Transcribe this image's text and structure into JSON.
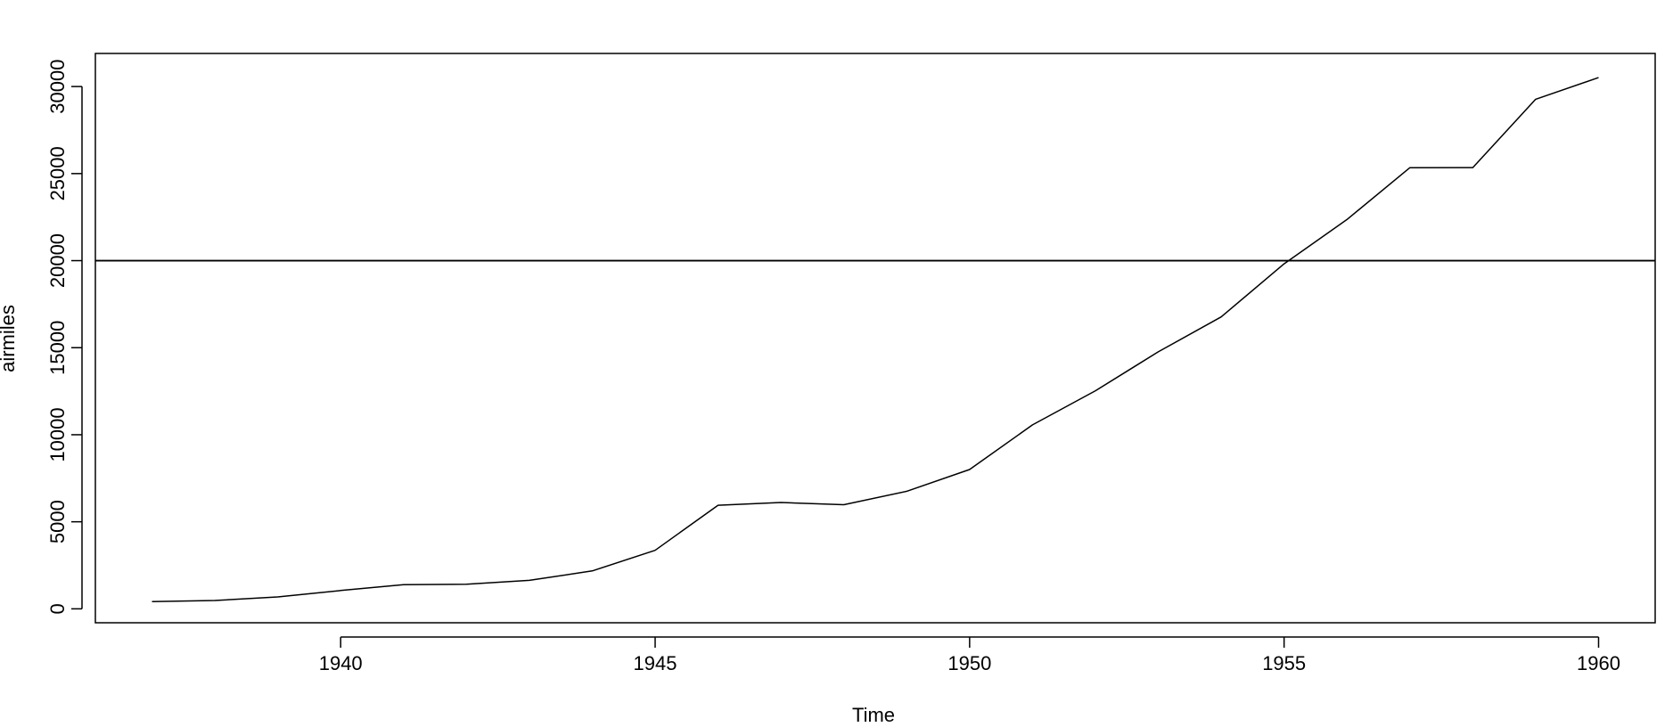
{
  "chart_data": {
    "type": "line",
    "title": "",
    "xlabel": "Time",
    "ylabel": "airmiles",
    "xlim": [
      1936.1,
      1960.9
    ],
    "ylim": [
      -800,
      31900
    ],
    "x_ticks": [
      1940,
      1945,
      1950,
      1955,
      1960
    ],
    "y_ticks": [
      0,
      5000,
      10000,
      15000,
      20000,
      25000,
      30000
    ],
    "x_tick_labels": [
      "1940",
      "1945",
      "1950",
      "1955",
      "1960"
    ],
    "y_tick_labels": [
      "0",
      "5000",
      "10000",
      "15000",
      "20000",
      "25000",
      "30000"
    ],
    "grid": false,
    "series": [
      {
        "x": [
          1937,
          1938,
          1939,
          1940,
          1941,
          1942,
          1943,
          1944,
          1945,
          1946,
          1947,
          1948,
          1949,
          1950,
          1951,
          1952,
          1953,
          1954,
          1955,
          1956,
          1957,
          1958,
          1959,
          1960
        ],
        "values": [
          412,
          480,
          683,
          1052,
          1385,
          1418,
          1634,
          2178,
          3362,
          5948,
          6109,
          5981,
          6753,
          8003,
          10566,
          12528,
          14760,
          16769,
          19819,
          22362,
          25340,
          25343,
          29269,
          30514
        ]
      }
    ],
    "reference_lines": [
      {
        "orientation": "horizontal",
        "value": 20000
      }
    ],
    "colors": {
      "line": "#000000",
      "axis": "#000000",
      "background": "#ffffff"
    }
  }
}
